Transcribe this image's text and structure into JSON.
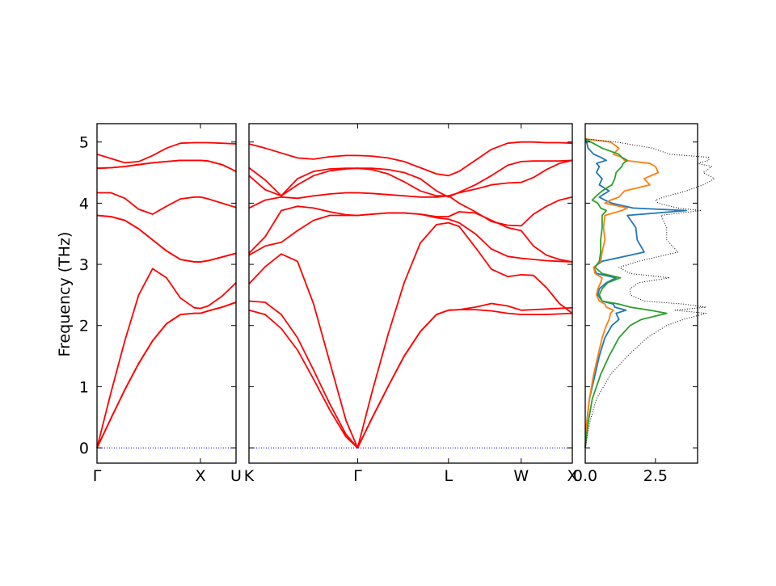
{
  "chart_data": {
    "type": "line",
    "ylabel": "Frequency (THz)",
    "ylim": [
      -0.25,
      5.3
    ],
    "yticks": [
      0,
      1,
      2,
      3,
      4,
      5
    ],
    "band_color": "#ff0000",
    "zero_line_color": "#0000ff",
    "panels": [
      {
        "xticks": [
          {
            "pos": 0.0,
            "label": "Γ"
          },
          {
            "pos": 0.744,
            "label": "X"
          },
          {
            "pos": 1.0,
            "label": "U"
          }
        ],
        "x": [
          0,
          0.1,
          0.2,
          0.3,
          0.4,
          0.5,
          0.6,
          0.7,
          0.744,
          0.8,
          0.9,
          1.0
        ],
        "bands": [
          [
            0,
            0.48,
            0.95,
            1.38,
            1.75,
            2.03,
            2.18,
            2.2,
            2.2,
            2.24,
            2.3,
            2.38
          ],
          [
            0,
            0.48,
            0.95,
            1.38,
            1.75,
            2.03,
            2.18,
            2.2,
            2.2,
            2.24,
            2.3,
            2.38
          ],
          [
            0,
            0.9,
            1.75,
            2.5,
            2.93,
            2.78,
            2.45,
            2.29,
            2.28,
            2.32,
            2.48,
            2.7
          ],
          [
            3.8,
            3.78,
            3.72,
            3.58,
            3.4,
            3.22,
            3.08,
            3.04,
            3.04,
            3.06,
            3.12,
            3.18
          ],
          [
            3.8,
            3.78,
            3.72,
            3.58,
            3.4,
            3.22,
            3.08,
            3.04,
            3.04,
            3.06,
            3.12,
            3.18
          ],
          [
            4.17,
            4.17,
            4.08,
            3.9,
            3.82,
            3.95,
            4.07,
            4.1,
            4.1,
            4.07,
            4.0,
            3.93
          ],
          [
            4.57,
            4.58,
            4.6,
            4.63,
            4.66,
            4.68,
            4.7,
            4.7,
            4.7,
            4.69,
            4.63,
            4.52
          ],
          [
            4.57,
            4.58,
            4.6,
            4.63,
            4.66,
            4.68,
            4.7,
            4.7,
            4.7,
            4.69,
            4.63,
            4.52
          ],
          [
            4.8,
            4.73,
            4.66,
            4.68,
            4.78,
            4.9,
            4.98,
            4.99,
            4.99,
            4.99,
            4.98,
            4.97
          ]
        ]
      },
      {
        "xticks": [
          {
            "pos": 0.0,
            "label": "K"
          },
          {
            "pos": 0.336,
            "label": "Γ"
          },
          {
            "pos": 0.617,
            "label": "L"
          },
          {
            "pos": 0.842,
            "label": "W"
          },
          {
            "pos": 1.0,
            "label": "X"
          }
        ],
        "x": [
          0,
          0.05,
          0.1,
          0.15,
          0.2,
          0.25,
          0.3,
          0.336,
          0.38,
          0.43,
          0.48,
          0.53,
          0.58,
          0.617,
          0.65,
          0.7,
          0.75,
          0.8,
          0.842,
          0.88,
          0.92,
          0.96,
          1.0
        ],
        "bands": [
          [
            2.25,
            2.18,
            1.95,
            1.6,
            1.12,
            0.62,
            0.18,
            0,
            0.48,
            1.0,
            1.5,
            1.9,
            2.18,
            2.25,
            2.26,
            2.3,
            2.36,
            2.32,
            2.25,
            2.26,
            2.27,
            2.28,
            2.29
          ],
          [
            2.4,
            2.38,
            2.18,
            1.8,
            1.27,
            0.72,
            0.22,
            0,
            0.48,
            1.0,
            1.5,
            1.9,
            2.18,
            2.25,
            2.26,
            2.26,
            2.24,
            2.2,
            2.18,
            2.18,
            2.18,
            2.19,
            2.2
          ],
          [
            2.68,
            2.96,
            3.17,
            3.05,
            2.35,
            1.4,
            0.45,
            0,
            0.9,
            1.85,
            2.7,
            3.35,
            3.65,
            3.68,
            3.62,
            3.28,
            2.92,
            2.8,
            2.83,
            2.82,
            2.62,
            2.36,
            2.2
          ],
          [
            3.15,
            3.3,
            3.36,
            3.55,
            3.72,
            3.8,
            3.8,
            3.8,
            3.82,
            3.84,
            3.84,
            3.82,
            3.76,
            3.74,
            3.68,
            3.5,
            3.25,
            3.13,
            3.1,
            3.08,
            3.06,
            3.05,
            3.04
          ],
          [
            3.18,
            3.45,
            3.88,
            3.95,
            3.92,
            3.86,
            3.81,
            3.8,
            3.82,
            3.84,
            3.84,
            3.82,
            3.78,
            3.78,
            3.86,
            3.84,
            3.72,
            3.6,
            3.55,
            3.3,
            3.15,
            3.08,
            3.04
          ],
          [
            3.92,
            4.05,
            4.1,
            4.08,
            4.12,
            4.15,
            4.17,
            4.17,
            4.16,
            4.14,
            4.12,
            4.1,
            4.1,
            4.12,
            4.0,
            3.86,
            3.7,
            3.64,
            3.63,
            3.82,
            3.95,
            4.05,
            4.1
          ],
          [
            4.45,
            4.22,
            4.12,
            4.3,
            4.45,
            4.53,
            4.56,
            4.57,
            4.55,
            4.48,
            4.35,
            4.2,
            4.12,
            4.12,
            4.17,
            4.23,
            4.3,
            4.33,
            4.34,
            4.42,
            4.55,
            4.65,
            4.7
          ],
          [
            4.58,
            4.38,
            4.12,
            4.4,
            4.52,
            4.56,
            4.57,
            4.57,
            4.57,
            4.55,
            4.5,
            4.4,
            4.2,
            4.1,
            4.18,
            4.3,
            4.45,
            4.62,
            4.68,
            4.69,
            4.69,
            4.69,
            4.7
          ],
          [
            4.97,
            4.9,
            4.82,
            4.74,
            4.72,
            4.76,
            4.78,
            4.78,
            4.77,
            4.74,
            4.68,
            4.58,
            4.48,
            4.45,
            4.52,
            4.7,
            4.88,
            4.98,
            5.0,
            5.0,
            4.99,
            4.99,
            4.98
          ]
        ]
      }
    ],
    "dos": {
      "xlim": [
        0,
        4.0
      ],
      "xticks": [
        {
          "value": 0.0,
          "label": "0.0"
        },
        {
          "value": 2.5,
          "label": "2.5"
        }
      ],
      "freq": [
        0,
        0.4,
        0.8,
        1.2,
        1.5,
        1.8,
        2.0,
        2.1,
        2.2,
        2.25,
        2.3,
        2.35,
        2.4,
        2.5,
        2.6,
        2.7,
        2.78,
        2.85,
        2.95,
        3.05,
        3.2,
        3.4,
        3.6,
        3.8,
        3.88,
        3.92,
        4.0,
        4.05,
        4.1,
        4.2,
        4.3,
        4.4,
        4.5,
        4.6,
        4.65,
        4.7,
        4.75,
        4.8,
        4.9,
        5.0,
        5.05
      ],
      "series": [
        {
          "color": "#1f77b4",
          "values": [
            0,
            0.05,
            0.15,
            0.35,
            0.5,
            0.7,
            0.95,
            1.2,
            1.1,
            1.45,
            1.05,
            1.0,
            0.6,
            0.45,
            0.5,
            0.75,
            1.1,
            0.4,
            0.3,
            0.6,
            2.1,
            1.85,
            1.8,
            1.5,
            3.6,
            1.7,
            0.95,
            0.7,
            0.5,
            0.85,
            0.5,
            0.6,
            0.4,
            0.5,
            0.4,
            0.75,
            0.55,
            0.3,
            0.1,
            0.05,
            0.0
          ]
        },
        {
          "color": "#ff7f0e",
          "values": [
            0,
            0.05,
            0.15,
            0.3,
            0.45,
            0.6,
            0.75,
            0.85,
            0.9,
            1.0,
            0.75,
            0.7,
            0.5,
            0.4,
            0.45,
            0.55,
            0.6,
            0.35,
            0.3,
            0.55,
            0.6,
            0.7,
            0.65,
            0.7,
            1.3,
            1.5,
            0.7,
            0.9,
            1.2,
            1.4,
            2.3,
            2.1,
            2.6,
            2.5,
            2.3,
            1.4,
            1.3,
            1.0,
            1.2,
            0.9,
            0.0
          ]
        },
        {
          "color": "#2ca02c",
          "values": [
            0,
            0.1,
            0.25,
            0.55,
            0.85,
            1.2,
            1.6,
            2.0,
            2.9,
            2.3,
            1.6,
            1.2,
            0.6,
            0.5,
            0.6,
            0.8,
            1.25,
            0.6,
            0.35,
            0.5,
            0.55,
            0.55,
            0.6,
            0.6,
            0.75,
            0.55,
            0.45,
            0.25,
            0.35,
            0.6,
            0.95,
            1.05,
            1.1,
            1.3,
            1.35,
            1.5,
            1.3,
            1.2,
            0.6,
            0.2,
            0.0
          ]
        },
        {
          "color": "#000000",
          "dotted": true,
          "values": [
            0,
            0.15,
            0.4,
            0.9,
            1.5,
            2.2,
            2.9,
            3.5,
            4.3,
            3.2,
            4.3,
            3.5,
            2.1,
            1.6,
            1.6,
            1.9,
            3.0,
            1.6,
            1.2,
            1.9,
            3.3,
            2.9,
            2.9,
            2.7,
            4.1,
            3.3,
            2.6,
            2.5,
            2.8,
            3.6,
            4.2,
            4.6,
            4.2,
            4.5,
            4.0,
            4.4,
            4.4,
            3.0,
            2.4,
            1.1,
            0.0
          ]
        }
      ]
    }
  }
}
